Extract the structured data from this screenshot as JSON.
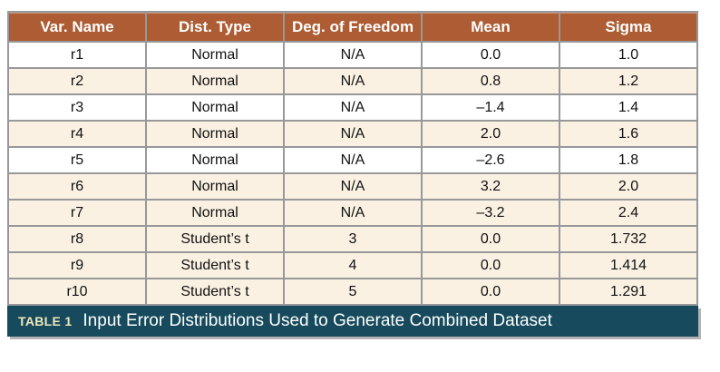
{
  "table": {
    "columns": [
      "Var. Name",
      "Dist. Type",
      "Deg. of Freedom",
      "Mean",
      "Sigma"
    ],
    "rows": [
      {
        "cells": [
          "r1",
          "Normal",
          "N/A",
          "0.0",
          "1.0"
        ],
        "shaded": false
      },
      {
        "cells": [
          "r2",
          "Normal",
          "N/A",
          "0.8",
          "1.2"
        ],
        "shaded": true
      },
      {
        "cells": [
          "r3",
          "Normal",
          "N/A",
          "–1.4",
          "1.4"
        ],
        "shaded": false
      },
      {
        "cells": [
          "r4",
          "Normal",
          "N/A",
          "2.0",
          "1.6"
        ],
        "shaded": true
      },
      {
        "cells": [
          "r5",
          "Normal",
          "N/A",
          "–2.6",
          "1.8"
        ],
        "shaded": false
      },
      {
        "cells": [
          "r6",
          "Normal",
          "N/A",
          "3.2",
          "2.0"
        ],
        "shaded": true
      },
      {
        "cells": [
          "r7",
          "Normal",
          "N/A",
          "–3.2",
          "2.4"
        ],
        "shaded": true
      },
      {
        "cells": [
          "r8",
          "Student’s t",
          "3",
          "0.0",
          "1.732"
        ],
        "shaded": true
      },
      {
        "cells": [
          "r9",
          "Student’s t",
          "4",
          "0.0",
          "1.414"
        ],
        "shaded": true
      },
      {
        "cells": [
          "r10",
          "Student’s t",
          "5",
          "0.0",
          "1.291"
        ],
        "shaded": true
      }
    ]
  },
  "caption": {
    "label": "TABLE 1",
    "text": "Input Error Distributions Used to Generate Combined Dataset"
  },
  "colors": {
    "header_bg": "#ad5c33",
    "header_text": "#ffffff",
    "row_shaded_bg": "#faf1e2",
    "row_plain_bg": "#ffffff",
    "grid_border": "#98989a",
    "caption_bg": "#164a5c",
    "caption_label_text": "#efe8bd",
    "caption_text": "#ffffff"
  }
}
